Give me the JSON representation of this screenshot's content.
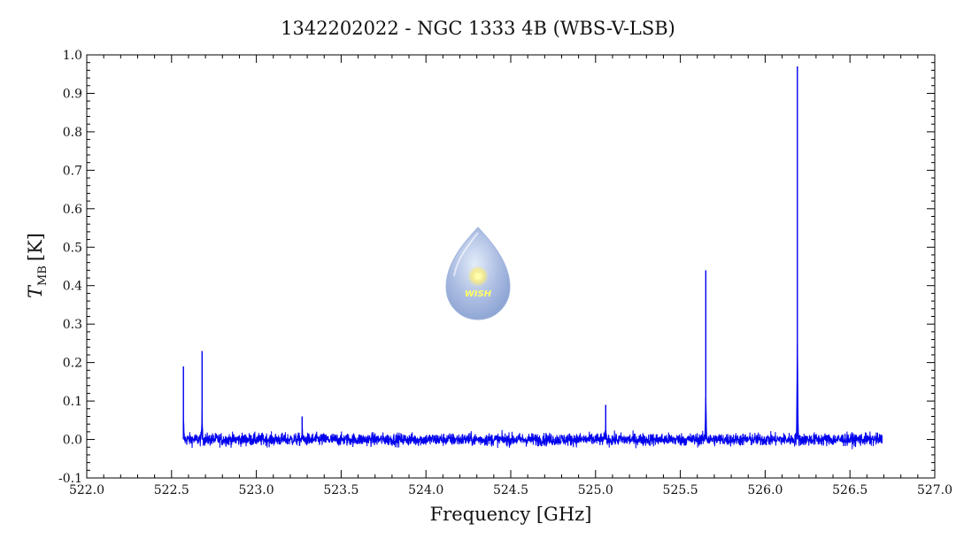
{
  "chart_data": {
    "type": "line",
    "title": "1342202022 - NGC 1333 4B (WBS-V-LSB)",
    "xlabel": "Frequency [GHz]",
    "ylabel_main": "T",
    "ylabel_sub": "MB",
    "ylabel_unit": "[K]",
    "xlim": [
      522.0,
      527.0
    ],
    "ylim": [
      -0.1,
      1.0
    ],
    "x_ticks": [
      "522.0",
      "522.5",
      "523.0",
      "523.5",
      "524.0",
      "524.5",
      "525.0",
      "525.5",
      "526.0",
      "526.5",
      "527.0"
    ],
    "y_ticks": [
      "-0.1",
      "0.0",
      "0.1",
      "0.2",
      "0.3",
      "0.4",
      "0.5",
      "0.6",
      "0.7",
      "0.8",
      "0.9",
      "1.0"
    ],
    "grid": false,
    "series": [
      {
        "color": "#0000ee",
        "x_range": [
          522.57,
          526.69
        ],
        "baseline": 0.0,
        "noise_rms": 0.012,
        "peaks": [
          {
            "x": 522.57,
            "y": 0.19
          },
          {
            "x": 522.68,
            "y": 0.23
          },
          {
            "x": 523.27,
            "y": 0.06
          },
          {
            "x": 525.06,
            "y": 0.09
          },
          {
            "x": 525.65,
            "y": 0.44
          },
          {
            "x": 526.19,
            "y": 0.97
          }
        ]
      }
    ]
  },
  "logo": {
    "text": "WISH"
  }
}
